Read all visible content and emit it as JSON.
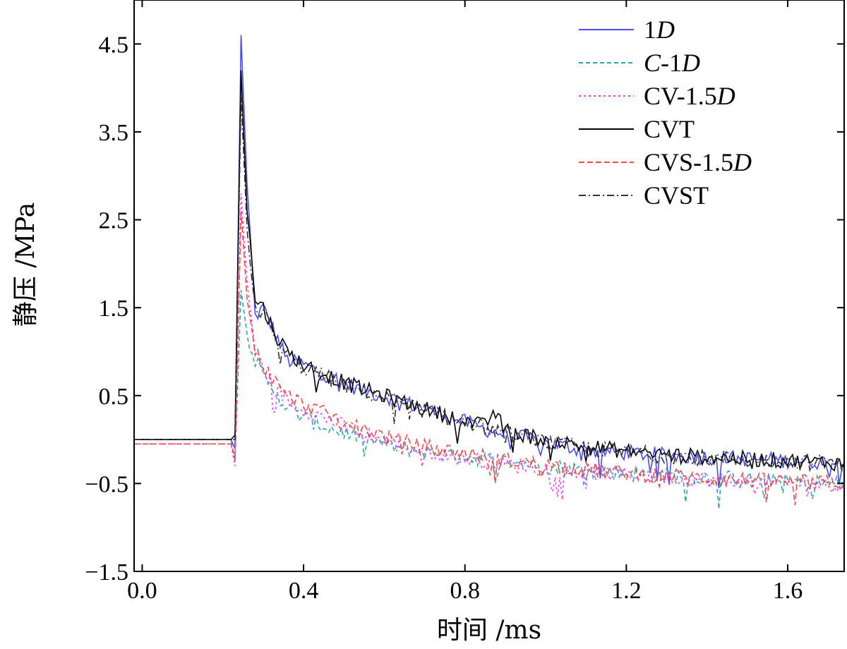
{
  "chart_data": {
    "type": "line",
    "title": "",
    "xlabel": "时间 /ms",
    "ylabel": "静压 /MPa",
    "xlim": [
      -0.02,
      1.74
    ],
    "ylim": [
      -1.5,
      5.0
    ],
    "x_ticks": [
      0.0,
      0.4,
      0.8,
      1.2,
      1.6
    ],
    "x_tick_labels": [
      "0.0",
      "0.4",
      "0.8",
      "1.2",
      "1.6"
    ],
    "y_ticks": [
      4.5,
      3.5,
      2.5,
      1.5,
      0.5,
      -0.5,
      -1.5
    ],
    "y_tick_labels": [
      "4.5",
      "3.5",
      "2.5",
      "1.5",
      "0.5",
      "−0.5",
      "−1.5"
    ],
    "grid": false,
    "legend_position": "top-right",
    "series": [
      {
        "name": "1D",
        "legend_parts": [
          {
            "t": "1",
            "i": false
          },
          {
            "t": "D",
            "i": true
          }
        ],
        "color": "#4a4af0",
        "dash": "none",
        "x": [
          -0.02,
          0.22,
          0.23,
          0.245,
          0.26,
          0.28,
          0.3,
          0.33,
          0.36,
          0.4,
          0.45,
          0.5,
          0.55,
          0.6,
          0.65,
          0.7,
          0.75,
          0.8,
          0.85,
          0.9,
          0.95,
          1.0,
          1.1,
          1.2,
          1.3,
          1.4,
          1.5,
          1.6,
          1.74
        ],
        "y": [
          0.0,
          0.0,
          -0.1,
          4.6,
          2.9,
          1.4,
          1.5,
          1.2,
          0.9,
          0.85,
          0.75,
          0.65,
          0.55,
          0.5,
          0.42,
          0.35,
          0.28,
          0.2,
          0.12,
          0.06,
          0.02,
          -0.04,
          -0.12,
          -0.15,
          -0.18,
          -0.2,
          -0.22,
          -0.24,
          -0.26
        ]
      },
      {
        "name": "C-1D",
        "legend_parts": [
          {
            "t": "C",
            "i": true
          },
          {
            "t": "-1",
            "i": false
          },
          {
            "t": "D",
            "i": true
          }
        ],
        "color": "#2aa8a8",
        "dash": "6,4",
        "x": [
          -0.02,
          0.22,
          0.23,
          0.245,
          0.26,
          0.28,
          0.3,
          0.33,
          0.36,
          0.4,
          0.45,
          0.5,
          0.55,
          0.6,
          0.65,
          0.7,
          0.75,
          0.8,
          0.85,
          0.9,
          0.95,
          1.0,
          1.1,
          1.2,
          1.3,
          1.4,
          1.5,
          1.6,
          1.74
        ],
        "y": [
          0.0,
          0.0,
          -0.25,
          1.7,
          1.2,
          0.9,
          0.7,
          0.55,
          0.35,
          0.25,
          0.15,
          0.08,
          0.02,
          -0.05,
          -0.1,
          -0.14,
          -0.17,
          -0.2,
          -0.22,
          -0.25,
          -0.27,
          -0.3,
          -0.35,
          -0.38,
          -0.41,
          -0.43,
          -0.45,
          -0.48,
          -0.5
        ]
      },
      {
        "name": "CV-1.5D",
        "legend_parts": [
          {
            "t": "CV-1.5",
            "i": false
          },
          {
            "t": "D",
            "i": true
          }
        ],
        "color": "#ff33ff",
        "dash": "3,4",
        "x": [
          -0.02,
          0.22,
          0.23,
          0.245,
          0.26,
          0.28,
          0.3,
          0.33,
          0.36,
          0.4,
          0.45,
          0.5,
          0.55,
          0.6,
          0.65,
          0.7,
          0.75,
          0.8,
          0.85,
          0.9,
          0.95,
          1.0,
          1.1,
          1.2,
          1.3,
          1.4,
          1.5,
          1.6,
          1.74
        ],
        "y": [
          -0.05,
          -0.05,
          -0.3,
          2.8,
          1.8,
          1.0,
          0.8,
          0.6,
          0.45,
          0.35,
          0.25,
          0.15,
          0.08,
          -0.02,
          -0.08,
          -0.13,
          -0.17,
          -0.21,
          -0.25,
          -0.28,
          -0.3,
          -0.33,
          -0.37,
          -0.4,
          -0.43,
          -0.46,
          -0.48,
          -0.5,
          -0.52
        ]
      },
      {
        "name": "CVT",
        "legend_parts": [
          {
            "t": "CVT",
            "i": false
          }
        ],
        "color": "#000000",
        "dash": "none",
        "x": [
          -0.02,
          0.22,
          0.23,
          0.245,
          0.26,
          0.28,
          0.3,
          0.33,
          0.36,
          0.4,
          0.45,
          0.5,
          0.55,
          0.6,
          0.65,
          0.7,
          0.75,
          0.8,
          0.85,
          0.87,
          0.9,
          0.95,
          1.0,
          1.1,
          1.2,
          1.3,
          1.4,
          1.5,
          1.6,
          1.74
        ],
        "y": [
          0.0,
          0.0,
          0.05,
          4.2,
          2.6,
          1.6,
          1.5,
          1.2,
          1.0,
          0.85,
          0.75,
          0.65,
          0.57,
          0.5,
          0.42,
          0.35,
          0.28,
          0.22,
          0.15,
          0.33,
          0.1,
          0.05,
          0.0,
          -0.08,
          -0.13,
          -0.17,
          -0.2,
          -0.22,
          -0.24,
          -0.27
        ]
      },
      {
        "name": "CVS-1.5D",
        "legend_parts": [
          {
            "t": "CVS-1.5",
            "i": false
          },
          {
            "t": "D",
            "i": true
          }
        ],
        "color": "#ff4444",
        "dash": "8,4",
        "x": [
          -0.02,
          0.22,
          0.23,
          0.245,
          0.26,
          0.28,
          0.3,
          0.33,
          0.36,
          0.4,
          0.45,
          0.5,
          0.55,
          0.6,
          0.65,
          0.7,
          0.75,
          0.8,
          0.85,
          0.9,
          0.95,
          1.0,
          1.1,
          1.2,
          1.3,
          1.4,
          1.5,
          1.6,
          1.74
        ],
        "y": [
          -0.05,
          -0.05,
          -0.2,
          2.6,
          1.6,
          1.0,
          0.85,
          0.65,
          0.5,
          0.4,
          0.3,
          0.2,
          0.12,
          0.04,
          -0.03,
          -0.08,
          -0.12,
          -0.16,
          -0.2,
          -0.23,
          -0.26,
          -0.29,
          -0.34,
          -0.38,
          -0.41,
          -0.44,
          -0.46,
          -0.48,
          -0.5
        ]
      },
      {
        "name": "CVST",
        "legend_parts": [
          {
            "t": "CVST",
            "i": false
          }
        ],
        "color": "#333333",
        "dash": "10,4,2,4",
        "x": [
          -0.02,
          0.22,
          0.23,
          0.245,
          0.26,
          0.28,
          0.3,
          0.33,
          0.36,
          0.4,
          0.45,
          0.5,
          0.55,
          0.6,
          0.65,
          0.7,
          0.75,
          0.8,
          0.85,
          0.9,
          0.95,
          1.0,
          1.1,
          1.2,
          1.3,
          1.4,
          1.5,
          1.6,
          1.74
        ],
        "y": [
          0.0,
          0.0,
          0.0,
          3.9,
          2.4,
          1.5,
          1.45,
          1.15,
          0.95,
          0.82,
          0.72,
          0.62,
          0.55,
          0.48,
          0.4,
          0.33,
          0.26,
          0.2,
          0.13,
          0.07,
          0.03,
          -0.02,
          -0.1,
          -0.14,
          -0.18,
          -0.21,
          -0.23,
          -0.25,
          -0.28
        ]
      }
    ]
  }
}
